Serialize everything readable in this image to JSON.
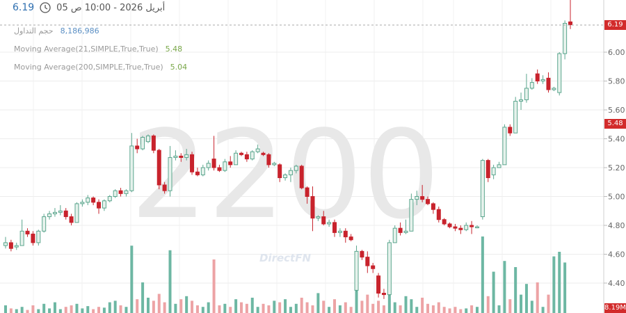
{
  "header": {
    "last_price": "6.19",
    "datetime": "أبريل 2026 - 10:00 ص 05",
    "clock_icon": "clock-icon"
  },
  "legend": {
    "volume_label": "حجم التداول",
    "volume_value": "8,186,986",
    "ma21_label": "Moving Average(21,SIMPLE,True,True)",
    "ma21_value": "5.48",
    "ma200_label": "Moving Average(200,SIMPLE,True,True)",
    "ma200_value": "5.04"
  },
  "price_tags": {
    "last": "6.19",
    "ma21": "5.48",
    "volume": "8.19M"
  },
  "watermark": {
    "symbol": "2200",
    "brand": "DirectFN"
  },
  "colors": {
    "up": "#5aa58d",
    "down": "#c8232c",
    "up_body": "#e6f2ec",
    "vol_up": "#6db7a3",
    "vol_down": "#eda3a5",
    "tag": "#d22b2b",
    "price_text": "#2e6fb0"
  },
  "chart_data": {
    "type": "candlestick",
    "yaxis": {
      "ticks": [
        "6.00",
        "5.80",
        "5.60",
        "5.40",
        "5.20",
        "5.00",
        "4.80",
        "4.60",
        "4.40"
      ],
      "range": [
        4.28,
        6.18
      ]
    },
    "grid": true,
    "ohlc": [
      [
        4.66,
        4.72,
        4.64,
        4.68
      ],
      [
        4.68,
        4.7,
        4.62,
        4.64
      ],
      [
        4.65,
        4.68,
        4.63,
        4.66
      ],
      [
        4.66,
        4.84,
        4.66,
        4.76
      ],
      [
        4.76,
        4.78,
        4.72,
        4.74
      ],
      [
        4.74,
        4.76,
        4.66,
        4.68
      ],
      [
        4.68,
        4.77,
        4.66,
        4.76
      ],
      [
        4.76,
        4.88,
        4.75,
        4.86
      ],
      [
        4.86,
        4.9,
        4.84,
        4.88
      ],
      [
        4.88,
        4.92,
        4.86,
        4.89
      ],
      [
        4.89,
        4.94,
        4.87,
        4.9
      ],
      [
        4.9,
        4.92,
        4.84,
        4.86
      ],
      [
        4.86,
        4.88,
        4.8,
        4.82
      ],
      [
        4.82,
        4.96,
        4.82,
        4.95
      ],
      [
        4.95,
        4.98,
        4.93,
        4.96
      ],
      [
        4.96,
        5.01,
        4.94,
        4.99
      ],
      [
        4.99,
        5.0,
        4.94,
        4.96
      ],
      [
        4.96,
        4.98,
        4.88,
        4.92
      ],
      [
        4.92,
        4.98,
        4.9,
        4.97
      ],
      [
        4.97,
        5.01,
        4.96,
        5.0
      ],
      [
        5.0,
        5.05,
        4.99,
        5.04
      ],
      [
        5.04,
        5.06,
        5.0,
        5.02
      ],
      [
        5.02,
        5.05,
        5.0,
        5.04
      ],
      [
        5.04,
        5.44,
        5.03,
        5.35
      ],
      [
        5.35,
        5.4,
        5.3,
        5.33
      ],
      [
        5.33,
        5.42,
        5.32,
        5.41
      ],
      [
        5.38,
        5.43,
        5.37,
        5.42
      ],
      [
        5.42,
        5.43,
        5.3,
        5.32
      ],
      [
        5.32,
        5.33,
        5.05,
        5.08
      ],
      [
        5.08,
        5.1,
        5.02,
        5.04
      ],
      [
        5.04,
        5.35,
        5.0,
        5.27
      ],
      [
        5.27,
        5.32,
        5.25,
        5.28
      ],
      [
        5.28,
        5.3,
        5.24,
        5.27
      ],
      [
        5.27,
        5.33,
        5.25,
        5.29
      ],
      [
        5.29,
        5.31,
        5.15,
        5.17
      ],
      [
        5.17,
        5.2,
        5.14,
        5.15
      ],
      [
        5.15,
        5.22,
        5.14,
        5.2
      ],
      [
        5.2,
        5.25,
        5.18,
        5.23
      ],
      [
        5.26,
        5.42,
        5.18,
        5.2
      ],
      [
        5.2,
        5.22,
        5.17,
        5.18
      ],
      [
        5.18,
        5.26,
        5.17,
        5.24
      ],
      [
        5.24,
        5.28,
        5.2,
        5.22
      ],
      [
        5.22,
        5.32,
        5.22,
        5.3
      ],
      [
        5.3,
        5.31,
        5.28,
        5.29
      ],
      [
        5.29,
        5.31,
        5.24,
        5.26
      ],
      [
        5.26,
        5.32,
        5.25,
        5.31
      ],
      [
        5.31,
        5.36,
        5.3,
        5.33
      ],
      [
        5.3,
        5.31,
        5.28,
        5.29
      ],
      [
        5.29,
        5.3,
        5.2,
        5.22
      ],
      [
        5.22,
        5.24,
        5.21,
        5.23
      ],
      [
        5.22,
        5.23,
        5.1,
        5.13
      ],
      [
        5.13,
        5.16,
        5.11,
        5.15
      ],
      [
        5.15,
        5.2,
        5.1,
        5.18
      ],
      [
        5.18,
        5.22,
        5.16,
        5.21
      ],
      [
        5.21,
        5.22,
        5.05,
        5.06
      ],
      [
        5.06,
        5.07,
        4.95,
        5.0
      ],
      [
        5.0,
        5.07,
        4.76,
        4.85
      ],
      [
        4.85,
        4.87,
        4.83,
        4.86
      ],
      [
        4.86,
        4.9,
        4.8,
        4.81
      ],
      [
        4.81,
        4.84,
        4.79,
        4.82
      ],
      [
        4.82,
        4.84,
        4.72,
        4.75
      ],
      [
        4.75,
        4.78,
        4.72,
        4.76
      ],
      [
        4.76,
        4.78,
        4.68,
        4.72
      ],
      [
        4.72,
        4.74,
        4.69,
        4.7
      ],
      [
        4.35,
        4.66,
        4.34,
        4.62
      ],
      [
        4.62,
        4.63,
        4.56,
        4.58
      ],
      [
        4.58,
        4.62,
        4.47,
        4.52
      ],
      [
        4.52,
        4.54,
        4.47,
        4.5
      ],
      [
        4.45,
        4.47,
        4.3,
        4.33
      ],
      [
        4.33,
        4.36,
        4.29,
        4.32
      ],
      [
        4.32,
        4.7,
        4.31,
        4.68
      ],
      [
        4.68,
        4.8,
        4.68,
        4.78
      ],
      [
        4.78,
        4.82,
        4.73,
        4.75
      ],
      [
        4.75,
        4.84,
        4.74,
        4.76
      ],
      [
        4.76,
        5.02,
        4.76,
        4.98
      ],
      [
        4.98,
        5.04,
        4.94,
        5.0
      ],
      [
        5.0,
        5.08,
        4.96,
        4.98
      ],
      [
        4.98,
        5.0,
        4.94,
        4.95
      ],
      [
        4.95,
        4.96,
        4.88,
        4.91
      ],
      [
        4.91,
        4.93,
        4.82,
        4.84
      ],
      [
        4.84,
        4.85,
        4.8,
        4.81
      ],
      [
        4.81,
        4.82,
        4.78,
        4.79
      ],
      [
        4.79,
        4.81,
        4.76,
        4.78
      ],
      [
        4.78,
        4.8,
        4.74,
        4.77
      ],
      [
        4.77,
        4.82,
        4.76,
        4.8
      ],
      [
        4.8,
        4.83,
        4.74,
        4.79
      ],
      [
        4.79,
        4.8,
        4.78,
        4.79
      ],
      [
        4.86,
        5.26,
        4.84,
        5.25
      ],
      [
        5.25,
        5.26,
        5.1,
        5.13
      ],
      [
        5.15,
        5.22,
        5.12,
        5.2
      ],
      [
        5.2,
        5.24,
        5.2,
        5.22
      ],
      [
        5.22,
        5.5,
        5.22,
        5.48
      ],
      [
        5.48,
        5.5,
        5.42,
        5.44
      ],
      [
        5.44,
        5.69,
        5.44,
        5.66
      ],
      [
        5.66,
        5.72,
        5.6,
        5.67
      ],
      [
        5.67,
        5.85,
        5.65,
        5.75
      ],
      [
        5.75,
        5.82,
        5.74,
        5.79
      ],
      [
        5.85,
        5.88,
        5.78,
        5.8
      ],
      [
        5.8,
        5.84,
        5.78,
        5.81
      ],
      [
        5.82,
        5.86,
        5.72,
        5.74
      ],
      [
        5.74,
        5.76,
        5.73,
        5.75
      ],
      [
        5.72,
        6.0,
        5.7,
        5.99
      ],
      [
        5.99,
        6.22,
        5.95,
        6.2
      ],
      [
        6.21,
        6.45,
        6.16,
        6.19
      ]
    ],
    "volume_relative": [
      10,
      6,
      5,
      8,
      4,
      10,
      5,
      12,
      6,
      14,
      5,
      8,
      10,
      12,
      6,
      9,
      5,
      8,
      7,
      14,
      16,
      10,
      8,
      88,
      18,
      40,
      20,
      16,
      25,
      14,
      82,
      12,
      18,
      22,
      16,
      10,
      8,
      14,
      70,
      10,
      12,
      8,
      18,
      14,
      12,
      20,
      8,
      12,
      10,
      16,
      14,
      18,
      8,
      12,
      20,
      14,
      10,
      26,
      16,
      8,
      18,
      10,
      14,
      8,
      44,
      16,
      24,
      12,
      16,
      10,
      28,
      14,
      10,
      22,
      18,
      8,
      20,
      12,
      10,
      14,
      8,
      6,
      8,
      5,
      6,
      10,
      8,
      100,
      22,
      54,
      10,
      68,
      18,
      60,
      24,
      38,
      16,
      40,
      8,
      24,
      74,
      80,
      66
    ]
  }
}
